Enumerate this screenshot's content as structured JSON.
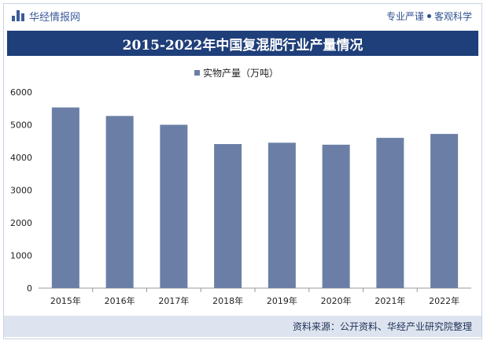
{
  "header": {
    "brand": "华经情报网",
    "tagline_left": "专业严谨",
    "tagline_right": "客观科学"
  },
  "footer": {
    "source": "资料来源：公开资料、华经产业研究院整理"
  },
  "colors": {
    "bar": "#6b7fa6",
    "title_bg": "#1f3f7a",
    "brand": "#3b5b9a"
  },
  "chart_data": {
    "type": "bar",
    "title": "2015-2022年中国复混肥行业产量情况",
    "categories": [
      "2015年",
      "2016年",
      "2017年",
      "2018年",
      "2019年",
      "2020年",
      "2021年",
      "2022年"
    ],
    "series": [
      {
        "name": "实物产量（万吨）",
        "values": [
          5530,
          5270,
          5000,
          4410,
          4450,
          4390,
          4600,
          4720
        ]
      }
    ],
    "yticks": [
      "0",
      "1000",
      "2000",
      "3000",
      "4000",
      "5000",
      "6000"
    ],
    "ylim": [
      0,
      6000
    ],
    "xlabel": "",
    "ylabel": "",
    "legend_position": "top-center"
  }
}
